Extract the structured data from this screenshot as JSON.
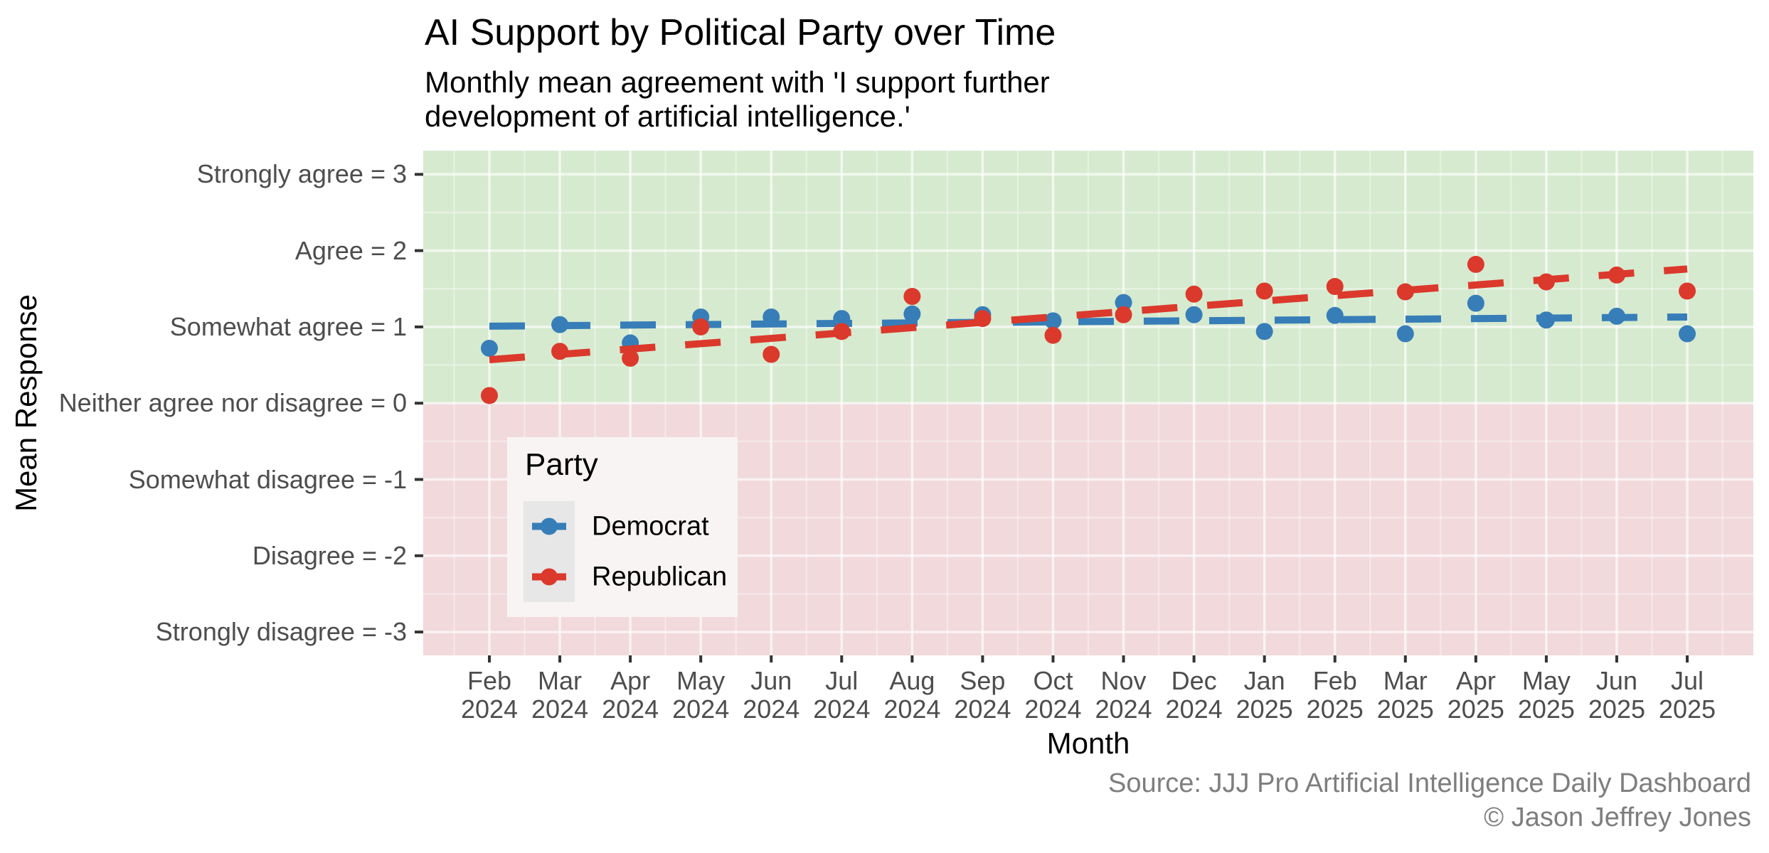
{
  "chart_data": {
    "type": "scatter",
    "title": "AI Support by Political Party over Time",
    "subtitle_lines": [
      "Monthly mean agreement with 'I support further",
      "development of artificial intelligence.'"
    ],
    "subtitle_full": "Monthly mean agreement with 'I support further development of artificial intelligence.'",
    "xlabel": "Month",
    "ylabel": "Mean Response",
    "caption_lines": [
      "Source: JJJ Pro Artificial Intelligence Daily Dashboard",
      "© Jason Jeffrey Jones"
    ],
    "legend_title": "Party",
    "x_categories": [
      {
        "month": "Feb",
        "year": "2024"
      },
      {
        "month": "Mar",
        "year": "2024"
      },
      {
        "month": "Apr",
        "year": "2024"
      },
      {
        "month": "May",
        "year": "2024"
      },
      {
        "month": "Jun",
        "year": "2024"
      },
      {
        "month": "Jul",
        "year": "2024"
      },
      {
        "month": "Aug",
        "year": "2024"
      },
      {
        "month": "Sep",
        "year": "2024"
      },
      {
        "month": "Oct",
        "year": "2024"
      },
      {
        "month": "Nov",
        "year": "2024"
      },
      {
        "month": "Dec",
        "year": "2024"
      },
      {
        "month": "Jan",
        "year": "2025"
      },
      {
        "month": "Feb",
        "year": "2025"
      },
      {
        "month": "Mar",
        "year": "2025"
      },
      {
        "month": "Apr",
        "year": "2025"
      },
      {
        "month": "May",
        "year": "2025"
      },
      {
        "month": "Jun",
        "year": "2025"
      },
      {
        "month": "Jul",
        "year": "2025"
      }
    ],
    "y_ticks": [
      {
        "label": "Strongly agree = 3",
        "value": 3
      },
      {
        "label": "Agree = 2",
        "value": 2
      },
      {
        "label": "Somewhat agree = 1",
        "value": 1
      },
      {
        "label": "Neither agree nor disagree = 0",
        "value": 0
      },
      {
        "label": "Somewhat disagree = -1",
        "value": -1
      },
      {
        "label": "Disagree = -2",
        "value": -2
      },
      {
        "label": "Strongly disagree = -3",
        "value": -3
      }
    ],
    "ylim": [
      -3.31,
      3.31
    ],
    "grid": "on",
    "legend_position": "inside-left-center",
    "series": [
      {
        "name": "Democrat",
        "color": "#377EB8",
        "values": [
          0.72,
          1.03,
          0.79,
          1.13,
          1.13,
          1.11,
          1.17,
          1.16,
          1.08,
          1.32,
          1.16,
          0.94,
          1.15,
          0.91,
          1.31,
          1.09,
          1.14,
          0.91
        ],
        "trend": {
          "start": 1.01,
          "end": 1.13
        }
      },
      {
        "name": "Republican",
        "color": "#DB392C",
        "values": [
          0.1,
          0.68,
          0.59,
          1.0,
          0.64,
          0.94,
          1.4,
          1.11,
          0.89,
          1.16,
          1.43,
          1.47,
          1.53,
          1.46,
          1.82,
          1.59,
          1.68,
          1.47
        ],
        "trend": {
          "start": 0.57,
          "end": 1.76
        }
      }
    ],
    "colors": {
      "positive_region": "#D6EACF",
      "negative_region": "#F1D9DC",
      "grid_major": "rgba(255,255,255,0.65)",
      "grid_minor": "rgba(255,255,255,0.35)",
      "tick_mark": "#333333",
      "tick_text": "#4D4D4D",
      "caption_text": "#7E7E7E",
      "legend_bg": "#F8F4F3",
      "legend_key_bg": "#E7E7E7"
    }
  }
}
